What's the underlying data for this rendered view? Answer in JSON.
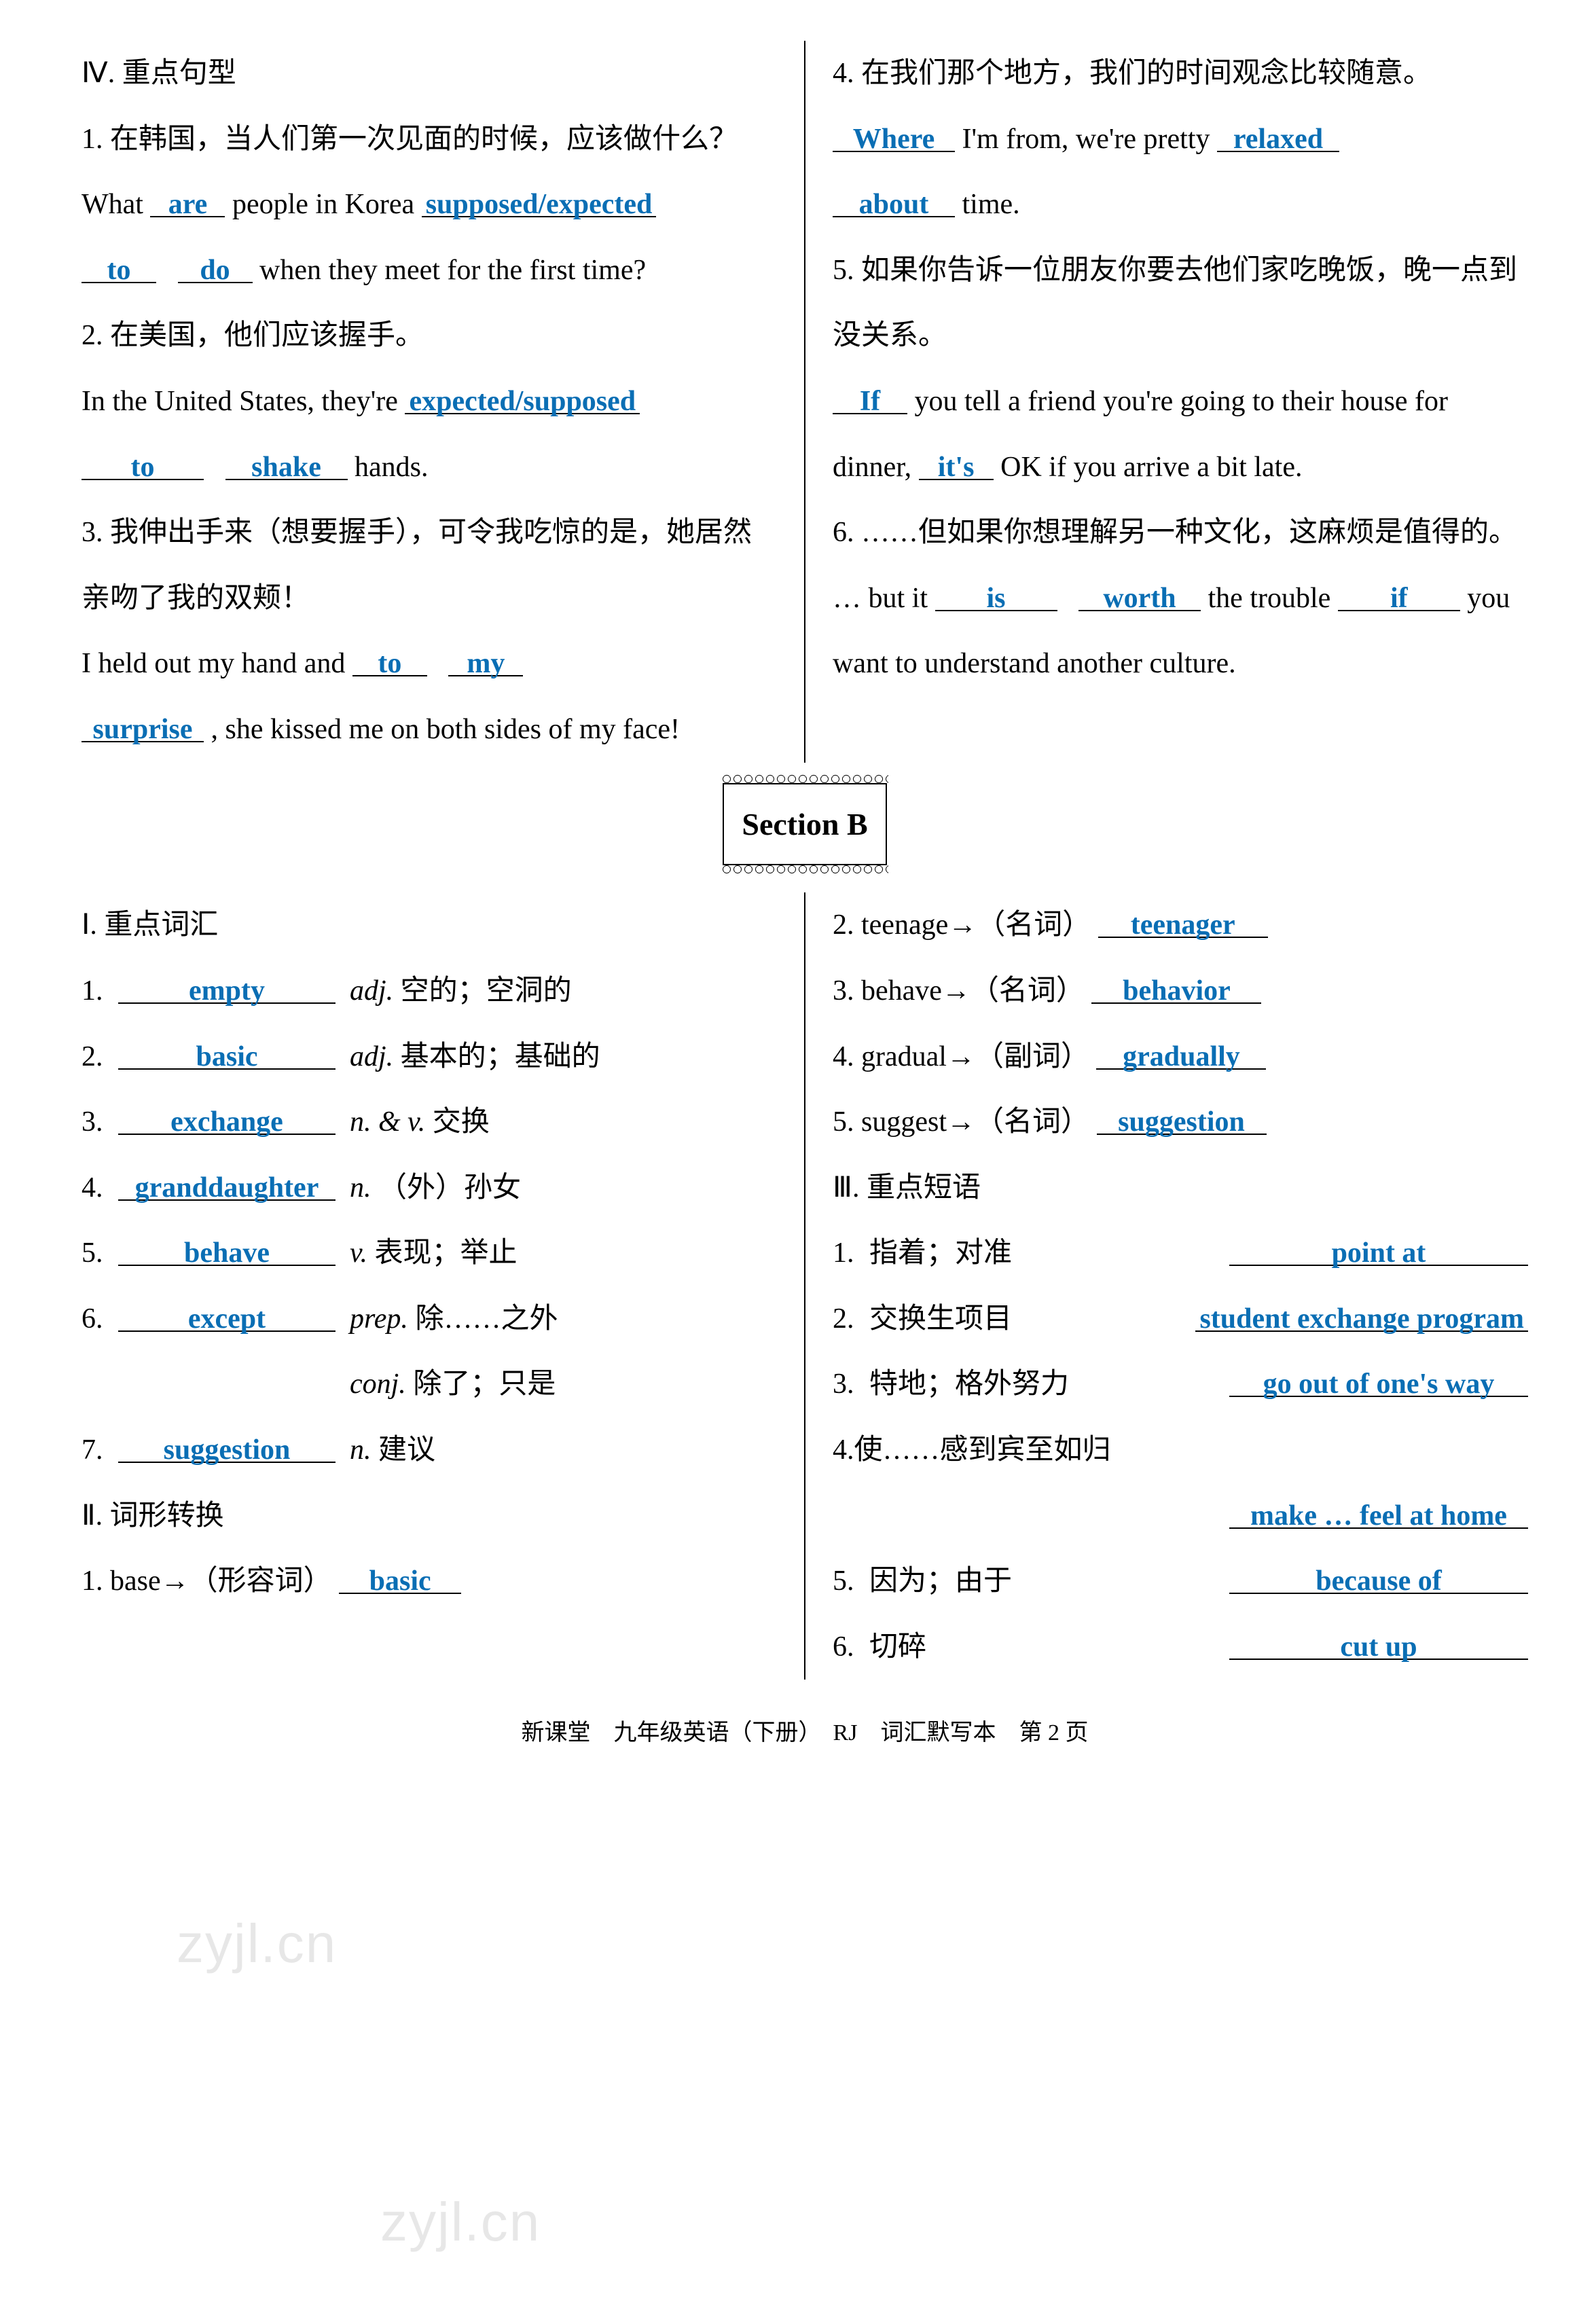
{
  "section4": {
    "heading": "Ⅳ. 重点句型",
    "left": {
      "q1_zh": "1. 在韩国，当人们第一次见面的时候，应该做什么？",
      "q1_en_a": "What ",
      "q1_b1": "are",
      "q1_en_b": " people in Korea ",
      "q1_b2": "supposed/expected",
      "q1_b3": "to",
      "q1_b4": "do",
      "q1_en_c": " when they meet for the first time?",
      "q2_zh": "2. 在美国，他们应该握手。",
      "q2_en_a": "In the United States, they're ",
      "q2_b1": "expected/supposed",
      "q2_b2": "to",
      "q2_b3": "shake",
      "q2_en_b": " hands.",
      "q3_zh": "3. 我伸出手来（想要握手），可令我吃惊的是，她居然亲吻了我的双颊！",
      "q3_en_a": "I held out my hand and ",
      "q3_b1": "to",
      "q3_b2": "my",
      "q3_b3": "surprise",
      "q3_en_b": ", she kissed me on both sides of my face!"
    },
    "right": {
      "q4_zh": "4. 在我们那个地方，我们的时间观念比较随意。",
      "q4_b1": "Where",
      "q4_en_a": " I'm from, we're pretty ",
      "q4_b2": "relaxed",
      "q4_b3": "about",
      "q4_en_b": " time.",
      "q5_zh": "5. 如果你告诉一位朋友你要去他们家吃晚饭，晚一点到没关系。",
      "q5_b1": "If",
      "q5_en_a": " you tell a friend you're going to their house for dinner, ",
      "q5_b2": "it's",
      "q5_en_b": " OK if you arrive a bit late.",
      "q6_zh": "6. ……但如果你想理解另一种文化，这麻烦是值得的。",
      "q6_en_a": "… but it ",
      "q6_b1": "is",
      "q6_b2": "worth",
      "q6_en_b": " the trouble ",
      "q6_b3": "if",
      "q6_en_c": " you want to understand another culture."
    }
  },
  "sectionB": {
    "title": "Section B",
    "h1": "Ⅰ. 重点词汇",
    "h2": "Ⅱ. 词形转换",
    "h3": "Ⅲ. 重点短语",
    "vocabL": [
      {
        "n": "1.",
        "ans": "empty",
        "pos": "adj.",
        "zh": "空的；空洞的"
      },
      {
        "n": "2.",
        "ans": "basic",
        "pos": "adj.",
        "zh": "基本的；基础的"
      },
      {
        "n": "3.",
        "ans": "exchange",
        "pos": "n. & v.",
        "zh": "交换"
      },
      {
        "n": "4.",
        "ans": "granddaughter",
        "pos": "n.",
        "zh": "（外）孙女"
      },
      {
        "n": "5.",
        "ans": "behave",
        "pos": "v.",
        "zh": "表现；举止"
      },
      {
        "n": "6.",
        "ans": "except",
        "pos": "prep.",
        "zh": "除……之外"
      },
      {
        "n": "",
        "ans": "",
        "pos": "conj.",
        "zh": "除了；只是"
      },
      {
        "n": "7.",
        "ans": "suggestion",
        "pos": "n.",
        "zh": "建议"
      }
    ],
    "forms": {
      "f1_a": "1. base→（形容词）",
      "f1_b": "basic",
      "f2_a": "2. teenage→（名词）",
      "f2_b": "teenager",
      "f3_a": "3. behave→（名词）",
      "f3_b": "behavior",
      "f4_a": "4. gradual→（副词）",
      "f4_b": "gradually",
      "f5_a": "5. suggest→（名词）",
      "f5_b": "suggestion"
    },
    "phrases": [
      {
        "n": "1.",
        "zh": "指着；对准",
        "ans": "point at"
      },
      {
        "n": "2.",
        "zh": "交换生项目",
        "ans": "student exchange program"
      },
      {
        "n": "3.",
        "zh": "特地；格外努力",
        "ans": "go out of one's way"
      },
      {
        "n": "4.",
        "zh": "使……感到宾至如归",
        "ans": "make … feel at home"
      },
      {
        "n": "5.",
        "zh": "因为；由于",
        "ans": "because of"
      },
      {
        "n": "6.",
        "zh": "切碎",
        "ans": "cut up"
      }
    ]
  },
  "footer": "新课堂　九年级英语（下册）　RJ　词汇默写本　第 2 页",
  "watermark1": "zyjl.cn",
  "watermark2": "zyjl.cn"
}
